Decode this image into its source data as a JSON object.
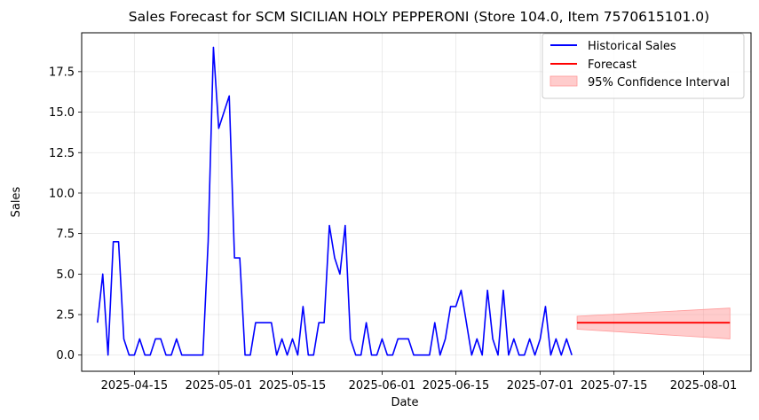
{
  "chart_data": {
    "type": "line",
    "title": "Sales Forecast for SCM SICILIAN HOLY PEPPERONI (Store 104.0, Item 7570615101.0)",
    "xlabel": "Date",
    "ylabel": "Sales",
    "xlim": [
      "2025-04-05",
      "2025-08-10"
    ],
    "ylim": [
      -1.0,
      19.9
    ],
    "x_ticks": [
      {
        "date": "2025-04-15",
        "label": "2025-04-15"
      },
      {
        "date": "2025-05-01",
        "label": "2025-05-01"
      },
      {
        "date": "2025-05-15",
        "label": "2025-05-15"
      },
      {
        "date": "2025-06-01",
        "label": "2025-06-01"
      },
      {
        "date": "2025-06-15",
        "label": "2025-06-15"
      },
      {
        "date": "2025-07-01",
        "label": "2025-07-01"
      },
      {
        "date": "2025-07-15",
        "label": "2025-07-15"
      },
      {
        "date": "2025-08-01",
        "label": "2025-08-01"
      }
    ],
    "y_ticks": [
      {
        "value": 0,
        "label": "0.0"
      },
      {
        "value": 2.5,
        "label": "2.5"
      },
      {
        "value": 5,
        "label": "5.0"
      },
      {
        "value": 7.5,
        "label": "7.5"
      },
      {
        "value": 10,
        "label": "10.0"
      },
      {
        "value": 12.5,
        "label": "12.5"
      },
      {
        "value": 15,
        "label": "15.0"
      },
      {
        "value": 17.5,
        "label": "17.5"
      }
    ],
    "grid": true,
    "legend_position": "top-right",
    "colors": {
      "historical": "#0000ff",
      "forecast": "#ff0000",
      "interval": "#ff9999"
    },
    "series": [
      {
        "name": "Historical Sales",
        "points": [
          [
            "2025-04-08",
            2
          ],
          [
            "2025-04-09",
            5
          ],
          [
            "2025-04-10",
            0
          ],
          [
            "2025-04-11",
            7
          ],
          [
            "2025-04-12",
            7
          ],
          [
            "2025-04-13",
            1
          ],
          [
            "2025-04-14",
            0
          ],
          [
            "2025-04-15",
            0
          ],
          [
            "2025-04-16",
            1
          ],
          [
            "2025-04-17",
            0
          ],
          [
            "2025-04-18",
            0
          ],
          [
            "2025-04-19",
            1
          ],
          [
            "2025-04-20",
            1
          ],
          [
            "2025-04-21",
            0
          ],
          [
            "2025-04-22",
            0
          ],
          [
            "2025-04-23",
            1
          ],
          [
            "2025-04-24",
            0
          ],
          [
            "2025-04-25",
            0
          ],
          [
            "2025-04-26",
            0
          ],
          [
            "2025-04-27",
            0
          ],
          [
            "2025-04-28",
            0
          ],
          [
            "2025-04-29",
            7
          ],
          [
            "2025-04-30",
            19
          ],
          [
            "2025-05-01",
            14
          ],
          [
            "2025-05-02",
            15
          ],
          [
            "2025-05-03",
            16
          ],
          [
            "2025-05-04",
            6
          ],
          [
            "2025-05-05",
            6
          ],
          [
            "2025-05-06",
            0
          ],
          [
            "2025-05-07",
            0
          ],
          [
            "2025-05-08",
            2
          ],
          [
            "2025-05-09",
            2
          ],
          [
            "2025-05-10",
            2
          ],
          [
            "2025-05-11",
            2
          ],
          [
            "2025-05-12",
            0
          ],
          [
            "2025-05-13",
            1
          ],
          [
            "2025-05-14",
            0
          ],
          [
            "2025-05-15",
            1
          ],
          [
            "2025-05-16",
            0
          ],
          [
            "2025-05-17",
            3
          ],
          [
            "2025-05-18",
            0
          ],
          [
            "2025-05-19",
            0
          ],
          [
            "2025-05-20",
            2
          ],
          [
            "2025-05-21",
            2
          ],
          [
            "2025-05-22",
            8
          ],
          [
            "2025-05-23",
            6
          ],
          [
            "2025-05-24",
            5
          ],
          [
            "2025-05-25",
            8
          ],
          [
            "2025-05-26",
            1
          ],
          [
            "2025-05-27",
            0
          ],
          [
            "2025-05-28",
            0
          ],
          [
            "2025-05-29",
            2
          ],
          [
            "2025-05-30",
            0
          ],
          [
            "2025-05-31",
            0
          ],
          [
            "2025-06-01",
            1
          ],
          [
            "2025-06-02",
            0
          ],
          [
            "2025-06-03",
            0
          ],
          [
            "2025-06-04",
            1
          ],
          [
            "2025-06-05",
            1
          ],
          [
            "2025-06-06",
            1
          ],
          [
            "2025-06-07",
            0
          ],
          [
            "2025-06-08",
            0
          ],
          [
            "2025-06-09",
            0
          ],
          [
            "2025-06-10",
            0
          ],
          [
            "2025-06-11",
            2
          ],
          [
            "2025-06-12",
            0
          ],
          [
            "2025-06-13",
            1
          ],
          [
            "2025-06-14",
            3
          ],
          [
            "2025-06-15",
            3
          ],
          [
            "2025-06-16",
            4
          ],
          [
            "2025-06-17",
            2
          ],
          [
            "2025-06-18",
            0
          ],
          [
            "2025-06-19",
            1
          ],
          [
            "2025-06-20",
            0
          ],
          [
            "2025-06-21",
            4
          ],
          [
            "2025-06-22",
            1
          ],
          [
            "2025-06-23",
            0
          ],
          [
            "2025-06-24",
            4
          ],
          [
            "2025-06-25",
            0
          ],
          [
            "2025-06-26",
            1
          ],
          [
            "2025-06-27",
            0
          ],
          [
            "2025-06-28",
            0
          ],
          [
            "2025-06-29",
            1
          ],
          [
            "2025-06-30",
            0
          ],
          [
            "2025-07-01",
            1
          ],
          [
            "2025-07-02",
            3
          ],
          [
            "2025-07-03",
            0
          ],
          [
            "2025-07-04",
            1
          ],
          [
            "2025-07-05",
            0
          ],
          [
            "2025-07-06",
            1
          ],
          [
            "2025-07-07",
            0
          ]
        ]
      },
      {
        "name": "Forecast",
        "points": [
          [
            "2025-07-08",
            2.0
          ],
          [
            "2025-08-06",
            2.0
          ]
        ]
      }
    ],
    "confidence_interval": {
      "name": "95% Confidence Interval",
      "points": [
        [
          "2025-07-08",
          1.6,
          2.4
        ],
        [
          "2025-08-06",
          1.0,
          2.9
        ]
      ]
    }
  }
}
